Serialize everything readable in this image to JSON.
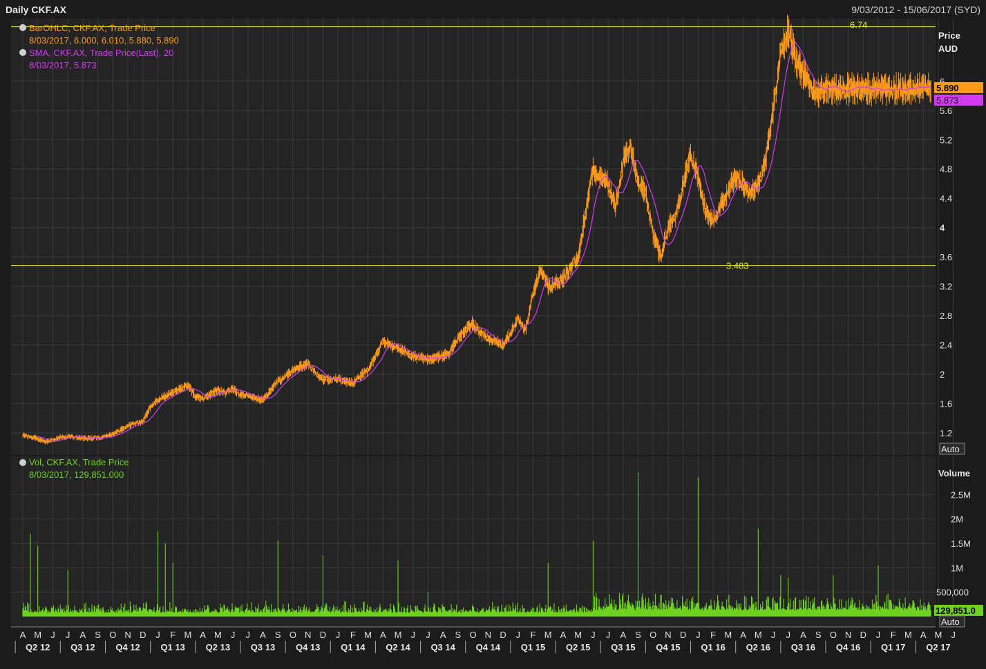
{
  "header": {
    "title": "Daily CKF.AX",
    "date_range": "9/03/2012 - 15/06/2017 (SYD)"
  },
  "colors": {
    "price": "#ff9a1a",
    "sma": "#d23cf0",
    "volume": "#6ed11f",
    "hline": "#e5e522",
    "grid": "#3a3a3a",
    "panel": "#242424"
  },
  "price_panel": {
    "axis_title": "Price",
    "axis_unit": "AUD",
    "auto_label": "Auto",
    "legend": {
      "ohlc_name": "BarOHLC, CKF.AX, Trade Price",
      "ohlc_values": "8/03/2017, 6.000, 6.010, 5.880, 5.890",
      "sma_name": "SMA, CKF.AX, Trade Price(Last),  20",
      "sma_values": "8/03/2017, 5.873"
    },
    "last_price_label": "5.890",
    "last_sma_label": "5.873",
    "high_label": "6.74",
    "low_label": "3.483"
  },
  "volume_panel": {
    "axis_title": "Volume",
    "auto_label": "Auto",
    "legend": {
      "name": "Vol, CKF.AX, Trade Price",
      "values": "8/03/2017, 129,851.000"
    },
    "last_volume_label": "129,851.0"
  },
  "chart_data": {
    "type": "line",
    "title": "Daily CKF.AX",
    "y_axis": {
      "price_ticks": [
        "1.2",
        "1.6",
        "2",
        "2.4",
        "2.8",
        "3.2",
        "3.6",
        "4",
        "4.4",
        "4.8",
        "5.2",
        "5.6",
        "6"
      ],
      "price_range": [
        0.9,
        6.85
      ],
      "volume_ticks": [
        "500,000",
        "1M",
        "1.5M",
        "2M",
        "2.5M"
      ],
      "volume_range": [
        0,
        3000000
      ]
    },
    "x_axis": {
      "months": [
        "A",
        "M",
        "J",
        "J",
        "A",
        "S",
        "O",
        "N",
        "D",
        "J",
        "F",
        "M",
        "A",
        "M",
        "J",
        "J",
        "A",
        "S",
        "O",
        "N",
        "D",
        "J",
        "F",
        "M",
        "A",
        "M",
        "J",
        "J",
        "A",
        "S",
        "O",
        "N",
        "D",
        "J",
        "F",
        "M",
        "A",
        "M",
        "J",
        "J",
        "A",
        "S",
        "O",
        "N",
        "D",
        "J",
        "F",
        "M",
        "A",
        "M",
        "J",
        "J",
        "A",
        "S",
        "O",
        "N",
        "D",
        "J",
        "F",
        "M",
        "A",
        "M",
        "J"
      ],
      "quarters": [
        "Q2 12",
        "Q3 12",
        "Q4 12",
        "Q1 13",
        "Q2 13",
        "Q3 13",
        "Q4 13",
        "Q1 14",
        "Q2 14",
        "Q3 14",
        "Q4 14",
        "Q1 15",
        "Q2 15",
        "Q3 15",
        "Q4 15",
        "Q1 16",
        "Q2 16",
        "Q3 16",
        "Q4 16",
        "Q1 17",
        "Q2 17"
      ]
    },
    "horizontal_lines": [
      6.74,
      3.483
    ],
    "series": [
      {
        "name": "BarOHLC, CKF.AX, Trade Price",
        "x_month_index": [
          0,
          0.5,
          1,
          1.5,
          2,
          2.5,
          3,
          3.5,
          4,
          5,
          6,
          7,
          7.5,
          8,
          8.5,
          9,
          9.5,
          10,
          10.5,
          11,
          11.5,
          12,
          13,
          13.5,
          14,
          14.5,
          15,
          16,
          17,
          18,
          19,
          20,
          21,
          21.5,
          22,
          22.5,
          23,
          24,
          24.5,
          25,
          26,
          27,
          28,
          28.5,
          29,
          30,
          30.5,
          31,
          32,
          32.5,
          33,
          33.5,
          34,
          34.5,
          35,
          36,
          37,
          38,
          39,
          39.5,
          40,
          40.5,
          41,
          41.5,
          42,
          42.5,
          43,
          43.5,
          44,
          44.5,
          45,
          45.5,
          46,
          46.5,
          47,
          47.5,
          48,
          48.5,
          49,
          49.5,
          50,
          50.5,
          51,
          51.5,
          52,
          52.5,
          53,
          53.5,
          54,
          54.5,
          55,
          55.5,
          56,
          56.5,
          57,
          57.5,
          58,
          58.5,
          59,
          59.5,
          60,
          60.5
        ],
        "y": [
          1.17,
          1.15,
          1.12,
          1.08,
          1.1,
          1.14,
          1.15,
          1.14,
          1.13,
          1.13,
          1.18,
          1.3,
          1.33,
          1.35,
          1.55,
          1.65,
          1.7,
          1.75,
          1.8,
          1.85,
          1.7,
          1.68,
          1.78,
          1.75,
          1.8,
          1.72,
          1.7,
          1.65,
          1.9,
          2.05,
          2.15,
          1.92,
          1.95,
          1.9,
          1.88,
          1.98,
          2.05,
          2.45,
          2.4,
          2.35,
          2.25,
          2.2,
          2.25,
          2.3,
          2.5,
          2.7,
          2.55,
          2.5,
          2.4,
          2.55,
          2.75,
          2.6,
          3.1,
          3.45,
          3.2,
          3.3,
          3.6,
          4.8,
          4.6,
          4.3,
          4.9,
          5.1,
          4.6,
          4.5,
          3.9,
          3.6,
          4.0,
          4.15,
          4.6,
          5.0,
          4.7,
          4.2,
          4.1,
          4.3,
          4.5,
          4.7,
          4.6,
          4.45,
          4.6,
          4.9,
          5.6,
          6.4,
          6.7,
          6.3,
          6.1,
          5.9,
          5.85,
          5.89,
          5.89,
          5.89,
          5.89,
          5.89,
          5.89,
          5.89,
          5.89,
          5.89,
          5.89,
          5.89,
          5.89,
          5.89,
          5.89,
          5.89
        ]
      },
      {
        "name": "SMA, CKF.AX, Trade Price(Last),  20",
        "note_days": 20
      },
      {
        "name": "Vol, CKF.AX, Trade Price",
        "type": "bar",
        "spikes_month_index": [
          0.5,
          1,
          3,
          9,
          9.5,
          10,
          17,
          20,
          25,
          27,
          35,
          38,
          41,
          45,
          49,
          50.5,
          51,
          54,
          57
        ],
        "spikes_value": [
          1700000,
          1450000,
          950000,
          1750000,
          1500000,
          1100000,
          1550000,
          1250000,
          1150000,
          500000,
          1100000,
          1550000,
          2950000,
          2850000,
          1800000,
          850000,
          800000,
          850000,
          1050000
        ]
      }
    ]
  }
}
